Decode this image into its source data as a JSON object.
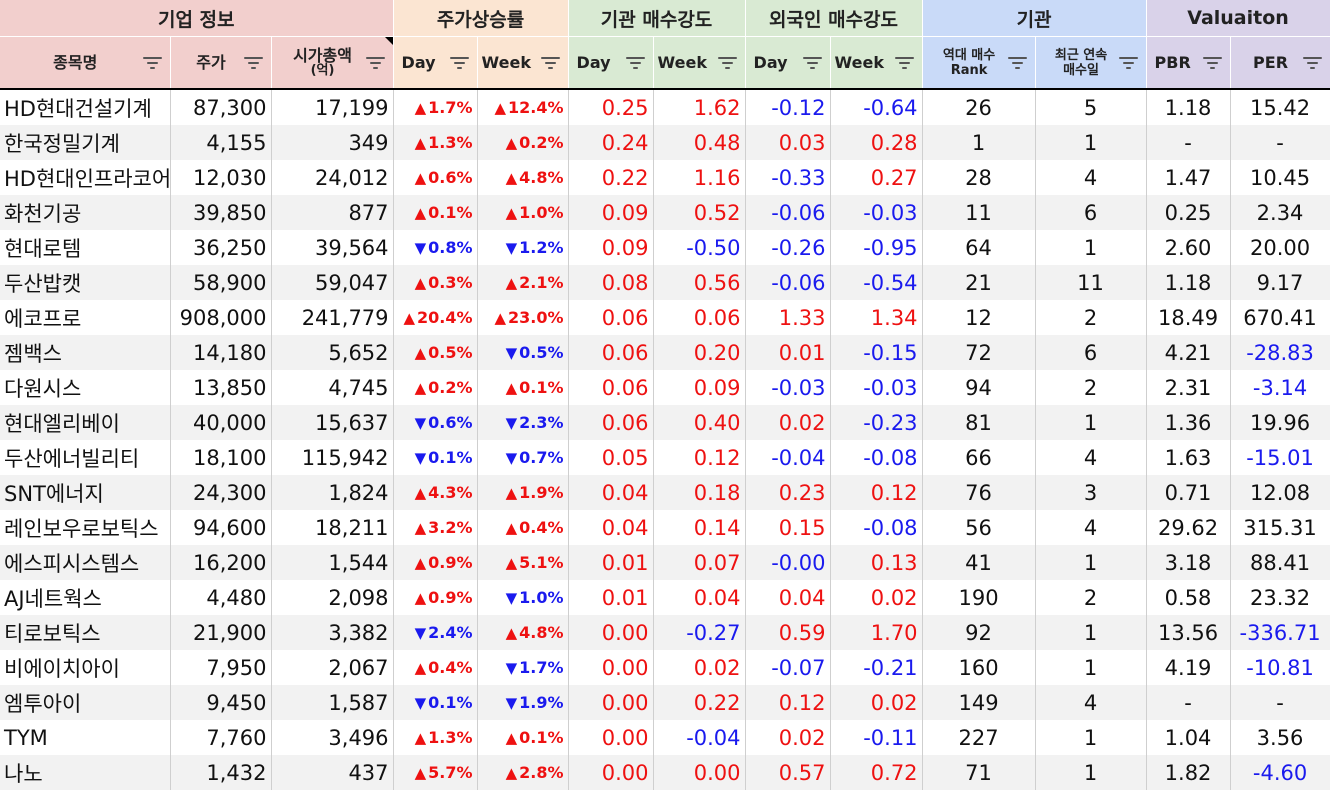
{
  "groups": {
    "info": "기업 정보",
    "price": "주가상승률",
    "inst": "기관 매수강도",
    "foreign": "외국인 매수강도",
    "org": "기관",
    "valuation": "Valuaiton"
  },
  "columns": {
    "name": "종목명",
    "price": "주가",
    "mcap": "시가총액",
    "mcap_unit": "(억)",
    "day": "Day",
    "week": "Week",
    "rank_1": "역대 매수",
    "rank_2": "Rank",
    "streak_1": "최근 연속",
    "streak_2": "매수일",
    "pbr": "PBR",
    "per": "PER"
  },
  "colors": {
    "up": "#ee1111",
    "down": "#1a1aee"
  },
  "rows": [
    {
      "name": "HD현대건설기계",
      "price": "87,300",
      "mcap": "17,199",
      "pday": "1.7%",
      "pday_dir": "up",
      "pweek": "12.4%",
      "pweek_dir": "up",
      "iday": "0.25",
      "iweek": "1.62",
      "fday": "-0.12",
      "fweek": "-0.64",
      "rank": "26",
      "streak": "5",
      "pbr": "1.18",
      "per": "15.42"
    },
    {
      "name": "한국정밀기계",
      "price": "4,155",
      "mcap": "349",
      "pday": "1.3%",
      "pday_dir": "up",
      "pweek": "0.2%",
      "pweek_dir": "up",
      "iday": "0.24",
      "iweek": "0.48",
      "fday": "0.03",
      "fweek": "0.28",
      "rank": "1",
      "streak": "1",
      "pbr": "-",
      "per": "-"
    },
    {
      "name": "HD현대인프라코어",
      "price": "12,030",
      "mcap": "24,012",
      "pday": "0.6%",
      "pday_dir": "up",
      "pweek": "4.8%",
      "pweek_dir": "up",
      "iday": "0.22",
      "iweek": "1.16",
      "fday": "-0.33",
      "fweek": "0.27",
      "rank": "28",
      "streak": "4",
      "pbr": "1.47",
      "per": "10.45"
    },
    {
      "name": "화천기공",
      "price": "39,850",
      "mcap": "877",
      "pday": "0.1%",
      "pday_dir": "up",
      "pweek": "1.0%",
      "pweek_dir": "up",
      "iday": "0.09",
      "iweek": "0.52",
      "fday": "-0.06",
      "fweek": "-0.03",
      "rank": "11",
      "streak": "6",
      "pbr": "0.25",
      "per": "2.34"
    },
    {
      "name": "현대로템",
      "price": "36,250",
      "mcap": "39,564",
      "pday": "0.8%",
      "pday_dir": "down",
      "pweek": "1.2%",
      "pweek_dir": "down",
      "iday": "0.09",
      "iweek": "-0.50",
      "fday": "-0.26",
      "fweek": "-0.95",
      "rank": "64",
      "streak": "1",
      "pbr": "2.60",
      "per": "20.00"
    },
    {
      "name": "두산밥캣",
      "price": "58,900",
      "mcap": "59,047",
      "pday": "0.3%",
      "pday_dir": "up",
      "pweek": "2.1%",
      "pweek_dir": "up",
      "iday": "0.08",
      "iweek": "0.56",
      "fday": "-0.06",
      "fweek": "-0.54",
      "rank": "21",
      "streak": "11",
      "pbr": "1.18",
      "per": "9.17"
    },
    {
      "name": "에코프로",
      "price": "908,000",
      "mcap": "241,779",
      "pday": "20.4%",
      "pday_dir": "up",
      "pweek": "23.0%",
      "pweek_dir": "up",
      "iday": "0.06",
      "iweek": "0.06",
      "fday": "1.33",
      "fweek": "1.34",
      "rank": "12",
      "streak": "2",
      "pbr": "18.49",
      "per": "670.41"
    },
    {
      "name": "젬백스",
      "price": "14,180",
      "mcap": "5,652",
      "pday": "0.5%",
      "pday_dir": "up",
      "pweek": "0.5%",
      "pweek_dir": "down",
      "iday": "0.06",
      "iweek": "0.20",
      "fday": "0.01",
      "fweek": "-0.15",
      "rank": "72",
      "streak": "6",
      "pbr": "4.21",
      "per": "-28.83"
    },
    {
      "name": "다원시스",
      "price": "13,850",
      "mcap": "4,745",
      "pday": "0.2%",
      "pday_dir": "up",
      "pweek": "0.1%",
      "pweek_dir": "up",
      "iday": "0.06",
      "iweek": "0.09",
      "fday": "-0.03",
      "fweek": "-0.03",
      "rank": "94",
      "streak": "2",
      "pbr": "2.31",
      "per": "-3.14"
    },
    {
      "name": "현대엘리베이",
      "price": "40,000",
      "mcap": "15,637",
      "pday": "0.6%",
      "pday_dir": "down",
      "pweek": "2.3%",
      "pweek_dir": "down",
      "iday": "0.06",
      "iweek": "0.40",
      "fday": "0.02",
      "fweek": "-0.23",
      "rank": "81",
      "streak": "1",
      "pbr": "1.36",
      "per": "19.96"
    },
    {
      "name": "두산에너빌리티",
      "price": "18,100",
      "mcap": "115,942",
      "pday": "0.1%",
      "pday_dir": "down",
      "pweek": "0.7%",
      "pweek_dir": "down",
      "iday": "0.05",
      "iweek": "0.12",
      "fday": "-0.04",
      "fweek": "-0.08",
      "rank": "66",
      "streak": "4",
      "pbr": "1.63",
      "per": "-15.01"
    },
    {
      "name": "SNT에너지",
      "price": "24,300",
      "mcap": "1,824",
      "pday": "4.3%",
      "pday_dir": "up",
      "pweek": "1.9%",
      "pweek_dir": "up",
      "iday": "0.04",
      "iweek": "0.18",
      "fday": "0.23",
      "fweek": "0.12",
      "rank": "76",
      "streak": "3",
      "pbr": "0.71",
      "per": "12.08"
    },
    {
      "name": "레인보우로보틱스",
      "price": "94,600",
      "mcap": "18,211",
      "pday": "3.2%",
      "pday_dir": "up",
      "pweek": "0.4%",
      "pweek_dir": "up",
      "iday": "0.04",
      "iweek": "0.14",
      "fday": "0.15",
      "fweek": "-0.08",
      "rank": "56",
      "streak": "4",
      "pbr": "29.62",
      "per": "315.31"
    },
    {
      "name": "에스피시스템스",
      "price": "16,200",
      "mcap": "1,544",
      "pday": "0.9%",
      "pday_dir": "up",
      "pweek": "5.1%",
      "pweek_dir": "up",
      "iday": "0.01",
      "iweek": "0.07",
      "fday": "-0.00",
      "fweek": "0.13",
      "rank": "41",
      "streak": "1",
      "pbr": "3.18",
      "per": "88.41"
    },
    {
      "name": "AJ네트웍스",
      "price": "4,480",
      "mcap": "2,098",
      "pday": "0.9%",
      "pday_dir": "up",
      "pweek": "1.0%",
      "pweek_dir": "down",
      "iday": "0.01",
      "iweek": "0.04",
      "fday": "0.04",
      "fweek": "0.02",
      "rank": "190",
      "streak": "2",
      "pbr": "0.58",
      "per": "23.32"
    },
    {
      "name": "티로보틱스",
      "price": "21,900",
      "mcap": "3,382",
      "pday": "2.4%",
      "pday_dir": "down",
      "pweek": "4.8%",
      "pweek_dir": "up",
      "iday": "0.00",
      "iweek": "-0.27",
      "fday": "0.59",
      "fweek": "1.70",
      "rank": "92",
      "streak": "1",
      "pbr": "13.56",
      "per": "-336.71"
    },
    {
      "name": "비에이치아이",
      "price": "7,950",
      "mcap": "2,067",
      "pday": "0.4%",
      "pday_dir": "up",
      "pweek": "1.7%",
      "pweek_dir": "down",
      "iday": "0.00",
      "iweek": "0.02",
      "fday": "-0.07",
      "fweek": "-0.21",
      "rank": "160",
      "streak": "1",
      "pbr": "4.19",
      "per": "-10.81"
    },
    {
      "name": "엠투아이",
      "price": "9,450",
      "mcap": "1,587",
      "pday": "0.1%",
      "pday_dir": "down",
      "pweek": "1.9%",
      "pweek_dir": "down",
      "iday": "0.00",
      "iweek": "0.22",
      "fday": "0.12",
      "fweek": "0.02",
      "rank": "149",
      "streak": "4",
      "pbr": "-",
      "per": "-"
    },
    {
      "name": "TYM",
      "price": "7,760",
      "mcap": "3,496",
      "pday": "1.3%",
      "pday_dir": "up",
      "pweek": "0.1%",
      "pweek_dir": "up",
      "iday": "0.00",
      "iweek": "-0.04",
      "fday": "0.02",
      "fweek": "-0.11",
      "rank": "227",
      "streak": "1",
      "pbr": "1.04",
      "per": "3.56"
    },
    {
      "name": "나노",
      "price": "1,432",
      "mcap": "437",
      "pday": "5.7%",
      "pday_dir": "up",
      "pweek": "2.8%",
      "pweek_dir": "up",
      "iday": "0.00",
      "iweek": "0.00",
      "fday": "0.57",
      "fweek": "0.72",
      "rank": "71",
      "streak": "1",
      "pbr": "1.82",
      "per": "-4.60"
    }
  ]
}
